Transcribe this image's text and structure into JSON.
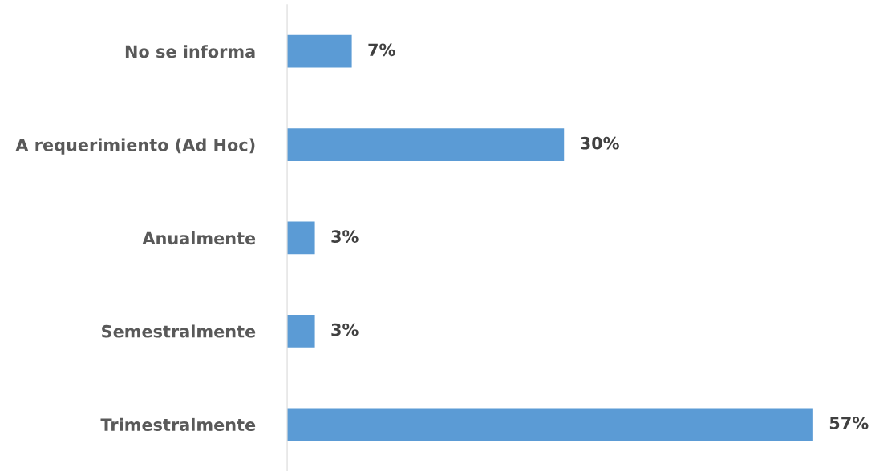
{
  "chart_data": {
    "type": "bar",
    "orientation": "horizontal",
    "categories": [
      "No se informa",
      "A requerimiento (Ad Hoc)",
      "Anualmente",
      "Semestralmente",
      "Trimestralmente"
    ],
    "values": [
      7,
      30,
      3,
      3,
      57
    ],
    "value_labels": [
      "7%",
      "30%",
      "3%",
      "3%",
      "57%"
    ],
    "color": "#5b9bd5",
    "grid": false,
    "legend": false
  }
}
